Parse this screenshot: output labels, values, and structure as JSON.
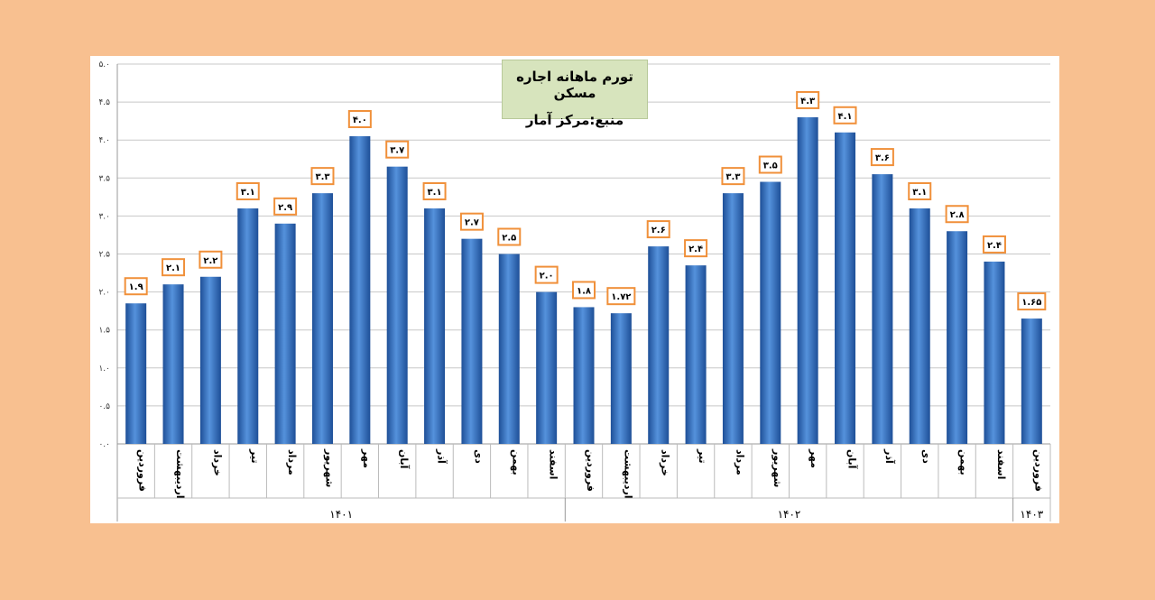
{
  "chart_data": {
    "type": "bar",
    "title": "تورم ماهانه اجاره مسکن",
    "subtitle": "منبع:مرکز آمار",
    "categories": [
      "فروردین",
      "اردیبهشت",
      "خرداد",
      "تیر",
      "مرداد",
      "شهریور",
      "مهر",
      "آبان",
      "آذر",
      "دی",
      "بهمن",
      "اسفند",
      "فروردین",
      "اردیبهشت",
      "خرداد",
      "تیر",
      "مرداد",
      "شهریور",
      "مهر",
      "آبان",
      "آذر",
      "دی",
      "بهمن",
      "اسفند",
      "فروردین"
    ],
    "values": [
      1.85,
      2.1,
      2.2,
      3.1,
      2.9,
      3.3,
      4.05,
      3.65,
      3.1,
      2.7,
      2.5,
      2.0,
      1.8,
      1.72,
      2.6,
      2.35,
      3.3,
      3.45,
      4.3,
      4.1,
      3.55,
      3.1,
      2.8,
      2.4,
      1.65
    ],
    "data_labels": [
      "۱.۹",
      "۲.۱",
      "۲.۲",
      "۳.۱",
      "۲.۹",
      "۳.۳",
      "۴.۰",
      "۳.۷",
      "۳.۱",
      "۲.۷",
      "۲.۵",
      "۲.۰",
      "۱.۸",
      "۱.۷۲",
      "۲.۶",
      "۲.۴",
      "۳.۳",
      "۳.۵",
      "۴.۳",
      "۴.۱",
      "۳.۶",
      "۳.۱",
      "۲.۸",
      "۲.۴",
      "۱.۶۵"
    ],
    "groups": [
      {
        "label": "۱۴۰۱",
        "count": 12
      },
      {
        "label": "۱۴۰۲",
        "count": 12
      },
      {
        "label": "۱۴۰۳",
        "count": 1
      }
    ],
    "ylim": [
      0,
      5
    ],
    "yticks": [
      "۰.۰",
      "۰.۵",
      "۱.۰",
      "۱.۵",
      "۲.۰",
      "۲.۵",
      "۳.۰",
      "۳.۵",
      "۴.۰",
      "۴.۵",
      "۵.۰"
    ],
    "xlabel": "",
    "ylabel": "",
    "grid": true,
    "colors": {
      "bar": "#3a75c4",
      "bar_light": "#5592dc",
      "bar_dark": "#1e4f97",
      "label_border": "#f0903a",
      "grid": "#c8c8c8",
      "background": "#f8c090"
    }
  }
}
